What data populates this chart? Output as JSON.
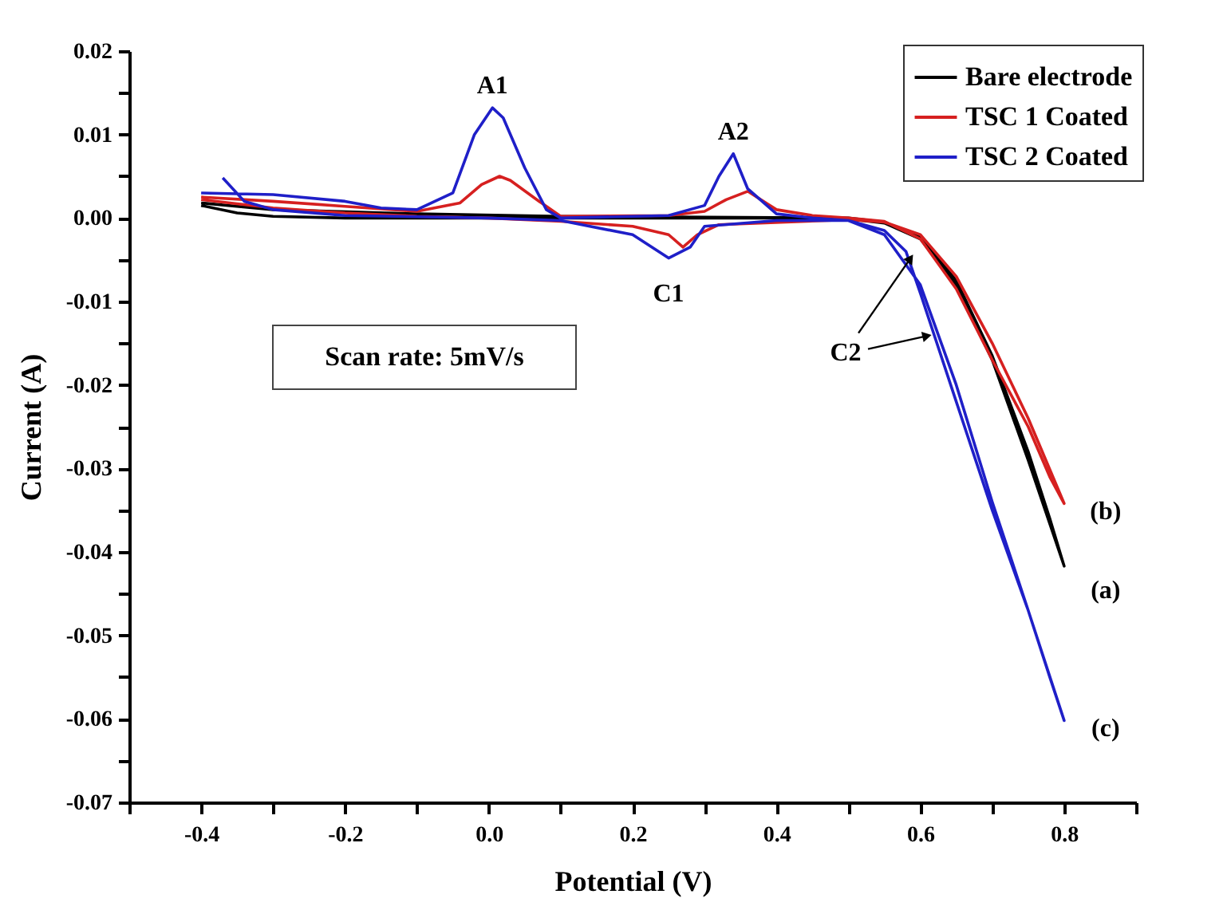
{
  "chart_data": {
    "type": "line",
    "xlabel": "Potential (V)",
    "ylabel": "Current (A)",
    "xlim": [
      -0.5,
      0.9
    ],
    "xticks": [
      {
        "value": -0.5,
        "label": null
      },
      -0.4,
      {
        "value": -0.3,
        "label": null
      },
      -0.2,
      {
        "value": -0.1,
        "label": null
      },
      {
        "value": 0,
        "label": "0.0"
      },
      {
        "value": 0.1,
        "label": null
      },
      0.2,
      {
        "value": 0.3,
        "label": null
      },
      0.4,
      {
        "value": 0.5,
        "label": null
      },
      0.6,
      {
        "value": 0.7,
        "label": null
      },
      0.8,
      {
        "value": 0.9,
        "label": null
      }
    ],
    "ylim": [
      -0.07,
      0.02
    ],
    "yticks": [
      -0.07,
      {
        "value": -0.065,
        "label": null
      },
      -0.06,
      {
        "value": -0.055,
        "label": null
      },
      -0.05,
      {
        "value": -0.045,
        "label": null
      },
      -0.04,
      {
        "value": -0.035,
        "label": null
      },
      -0.03,
      {
        "value": -0.025,
        "label": null
      },
      -0.02,
      {
        "value": -0.015,
        "label": null
      },
      -0.01,
      {
        "value": -0.005,
        "label": null
      },
      {
        "value": 0,
        "label": "0.00"
      },
      {
        "value": 0.005,
        "label": null
      },
      0.01,
      {
        "value": 0.015,
        "label": null
      },
      0.02
    ],
    "grid": false,
    "legend": "top right",
    "marker": "none",
    "line_style": "solid",
    "series": [
      {
        "name": "Bare electrode",
        "color": "#000000",
        "x": [
          -0.4,
          -0.35,
          -0.3,
          -0.2,
          0,
          0.2,
          0.4,
          0.5,
          0.55,
          0.6,
          0.65,
          0.7,
          0.75,
          0.8,
          0.78,
          0.75,
          0.7,
          0.65,
          0.6,
          0.55,
          0.5,
          0.3,
          0.1,
          -0.1,
          -0.3,
          -0.4
        ],
        "values": [
          0.0015,
          0.0006,
          0.0002,
          0.0,
          0.0,
          0.0,
          0.0,
          -0.0001,
          -0.0006,
          -0.0025,
          -0.008,
          -0.017,
          -0.029,
          -0.0417,
          -0.036,
          -0.028,
          -0.0165,
          -0.0075,
          -0.0022,
          -0.0005,
          0.0,
          0.0001,
          0.0002,
          0.0005,
          0.001,
          0.0018
        ]
      },
      {
        "name": "TSC 1 Coated",
        "color": "#d62020",
        "x": [
          -0.4,
          -0.3,
          -0.2,
          -0.1,
          0,
          0.1,
          0.2,
          0.25,
          0.27,
          0.29,
          0.32,
          0.5,
          0.55,
          0.6,
          0.65,
          0.7,
          0.75,
          0.8,
          0.78,
          0.75,
          0.7,
          0.65,
          0.6,
          0.55,
          0.5,
          0.45,
          0.4,
          0.36,
          0.33,
          0.3,
          0.25,
          0.1,
          0.07,
          0.03,
          0.015,
          -0.01,
          -0.04,
          -0.1,
          -0.2,
          -0.3,
          -0.4
        ],
        "values": [
          0.0022,
          0.0012,
          0.0006,
          0.0002,
          0.0,
          -0.0004,
          -0.001,
          -0.002,
          -0.0035,
          -0.002,
          -0.0008,
          -0.0002,
          -0.0005,
          -0.002,
          -0.007,
          -0.015,
          -0.024,
          -0.0342,
          -0.031,
          -0.025,
          -0.017,
          -0.0085,
          -0.0025,
          -0.0004,
          0.0,
          0.0003,
          0.001,
          0.0032,
          0.0022,
          0.0008,
          0.0003,
          0.0002,
          0.002,
          0.0045,
          0.005,
          0.004,
          0.0018,
          0.0008,
          0.0014,
          0.002,
          0.0025
        ]
      },
      {
        "name": "TSC 2 Coated",
        "color": "#1f1fc8",
        "x": [
          -0.37,
          -0.34,
          -0.3,
          -0.2,
          0,
          0.1,
          0.2,
          0.25,
          0.28,
          0.3,
          0.4,
          0.5,
          0.55,
          0.58,
          0.6,
          0.65,
          0.7,
          0.75,
          0.8,
          0.78,
          0.75,
          0.7,
          0.65,
          0.6,
          0.55,
          0.5,
          0.45,
          0.4,
          0.36,
          0.34,
          0.32,
          0.3,
          0.25,
          0.1,
          0.08,
          0.05,
          0.02,
          0.005,
          -0.02,
          -0.05,
          -0.1,
          -0.15,
          -0.2,
          -0.3,
          -0.4
        ],
        "values": [
          0.0048,
          0.002,
          0.001,
          0.0003,
          0.0,
          -0.0003,
          -0.002,
          -0.0048,
          -0.0035,
          -0.001,
          -0.0003,
          -0.0003,
          -0.0015,
          -0.004,
          -0.009,
          -0.022,
          -0.035,
          -0.047,
          -0.0602,
          -0.055,
          -0.047,
          -0.034,
          -0.02,
          -0.008,
          -0.002,
          -0.0003,
          0.0,
          0.0005,
          0.0035,
          0.0077,
          0.005,
          0.0015,
          0.0003,
          0.0,
          0.001,
          0.006,
          0.012,
          0.0132,
          0.01,
          0.003,
          0.001,
          0.0012,
          0.002,
          0.0028,
          0.003
        ]
      }
    ],
    "annotations": [
      {
        "text": "A1",
        "x": 0.005,
        "y": 0.0132
      },
      {
        "text": "A2",
        "x": 0.34,
        "y": 0.0077
      },
      {
        "text": "C1",
        "x": 0.25,
        "y": -0.0048
      },
      {
        "text": "C2",
        "x": 0.585,
        "y": -0.005
      },
      {
        "text": "(b)",
        "x": 0.8,
        "y": -0.0342
      },
      {
        "text": "(a)",
        "x": 0.8,
        "y": -0.0417
      },
      {
        "text": "(c)",
        "x": 0.8,
        "y": -0.0602
      },
      "Scan rate: 5mV/s"
    ]
  }
}
